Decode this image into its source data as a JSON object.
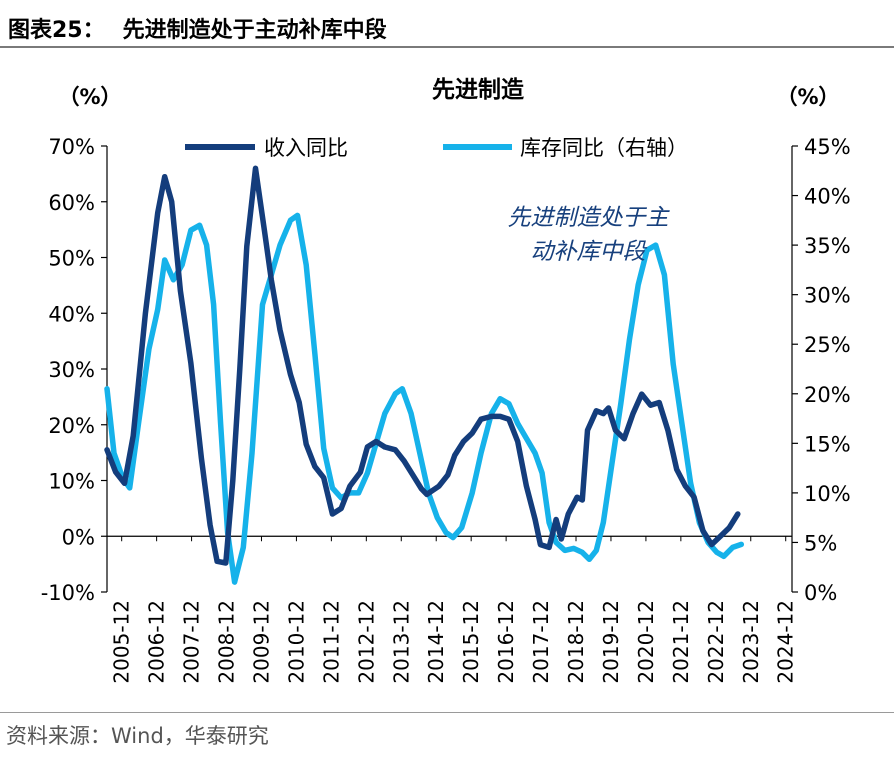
{
  "figure": {
    "label": "图表25：",
    "title": "先进制造处于主动补库中段",
    "source": "资料来源：Wind，华泰研究"
  },
  "colors": {
    "revenue": "#143D7C",
    "inventory": "#16B2EA",
    "annotation": "#17407D"
  },
  "chart_data": {
    "type": "line",
    "title": "先进制造",
    "ylabel_left": "（%）",
    "ylabel_right": "（%）",
    "left_axis": {
      "min": -10,
      "max": 70,
      "step": 10,
      "ticks": [
        "-10%",
        "0%",
        "10%",
        "20%",
        "30%",
        "40%",
        "50%",
        "60%",
        "70%"
      ]
    },
    "right_axis": {
      "min": 0,
      "max": 45,
      "step": 5,
      "ticks": [
        "0%",
        "5%",
        "10%",
        "15%",
        "20%",
        "25%",
        "30%",
        "35%",
        "40%",
        "45%"
      ]
    },
    "x_range": [
      2005.5,
      2025.1
    ],
    "categories": [
      "2005-12",
      "2006-12",
      "2007-12",
      "2008-12",
      "2009-12",
      "2010-12",
      "2011-12",
      "2012-12",
      "2013-12",
      "2014-12",
      "2015-12",
      "2016-12",
      "2017-12",
      "2018-12",
      "2019-12",
      "2020-12",
      "2021-12",
      "2022-12",
      "2023-12",
      "2024-12"
    ],
    "category_x": [
      2005.92,
      2006.92,
      2007.92,
      2008.92,
      2009.92,
      2010.92,
      2011.92,
      2012.92,
      2013.92,
      2014.92,
      2015.92,
      2016.92,
      2017.92,
      2018.92,
      2019.92,
      2020.92,
      2021.92,
      2022.92,
      2023.92,
      2024.92
    ],
    "annotation": [
      "先进制造处于主",
      "动补库中段"
    ],
    "series": [
      {
        "name": "收入同比",
        "axis": "left",
        "points": [
          [
            2005.5,
            15.5
          ],
          [
            2005.75,
            11.5
          ],
          [
            2006.0,
            9.5
          ],
          [
            2006.25,
            18
          ],
          [
            2006.6,
            40
          ],
          [
            2006.95,
            58
          ],
          [
            2007.15,
            64.5
          ],
          [
            2007.35,
            60
          ],
          [
            2007.6,
            44
          ],
          [
            2007.9,
            31
          ],
          [
            2008.2,
            14
          ],
          [
            2008.45,
            2
          ],
          [
            2008.65,
            -4.5
          ],
          [
            2008.9,
            -4.8
          ],
          [
            2009.1,
            10
          ],
          [
            2009.3,
            30
          ],
          [
            2009.5,
            52
          ],
          [
            2009.75,
            66
          ],
          [
            2010.0,
            55
          ],
          [
            2010.2,
            46
          ],
          [
            2010.45,
            37
          ],
          [
            2010.75,
            29
          ],
          [
            2011.0,
            24
          ],
          [
            2011.2,
            16.5
          ],
          [
            2011.45,
            12.5
          ],
          [
            2011.7,
            10.5
          ],
          [
            2011.95,
            4
          ],
          [
            2012.2,
            5
          ],
          [
            2012.45,
            9
          ],
          [
            2012.75,
            11.5
          ],
          [
            2012.95,
            16
          ],
          [
            2013.2,
            17
          ],
          [
            2013.45,
            16
          ],
          [
            2013.75,
            15.5
          ],
          [
            2014.0,
            13.5
          ],
          [
            2014.25,
            11
          ],
          [
            2014.5,
            8.5
          ],
          [
            2014.65,
            7.5
          ],
          [
            2015.0,
            9
          ],
          [
            2015.25,
            11
          ],
          [
            2015.45,
            14.5
          ],
          [
            2015.7,
            17
          ],
          [
            2015.95,
            18.5
          ],
          [
            2016.2,
            21
          ],
          [
            2016.5,
            21.5
          ],
          [
            2016.75,
            21.5
          ],
          [
            2017.0,
            21
          ],
          [
            2017.25,
            17
          ],
          [
            2017.5,
            9
          ],
          [
            2017.75,
            3
          ],
          [
            2017.9,
            -1.5
          ],
          [
            2018.15,
            -2
          ],
          [
            2018.35,
            3
          ],
          [
            2018.5,
            -0.5
          ],
          [
            2018.7,
            4
          ],
          [
            2018.95,
            7
          ],
          [
            2019.1,
            6.5
          ],
          [
            2019.25,
            19
          ],
          [
            2019.5,
            22.5
          ],
          [
            2019.7,
            22
          ],
          [
            2019.85,
            23
          ],
          [
            2020.05,
            19
          ],
          [
            2020.3,
            17.5
          ],
          [
            2020.55,
            22
          ],
          [
            2020.8,
            25.5
          ],
          [
            2021.05,
            23.5
          ],
          [
            2021.3,
            24
          ],
          [
            2021.55,
            19
          ],
          [
            2021.8,
            12
          ],
          [
            2022.05,
            9
          ],
          [
            2022.3,
            7
          ],
          [
            2022.55,
            1
          ],
          [
            2022.8,
            -1.5
          ],
          [
            2023.05,
            0
          ],
          [
            2023.3,
            1.5
          ],
          [
            2023.55,
            4
          ]
        ]
      },
      {
        "name": "库存同比（右轴）",
        "axis": "right",
        "points": [
          [
            2005.5,
            20.5
          ],
          [
            2005.7,
            14
          ],
          [
            2005.95,
            11.5
          ],
          [
            2006.15,
            10.5
          ],
          [
            2006.4,
            17
          ],
          [
            2006.7,
            24.5
          ],
          [
            2006.95,
            28.5
          ],
          [
            2007.15,
            33.5
          ],
          [
            2007.4,
            31.5
          ],
          [
            2007.65,
            33
          ],
          [
            2007.9,
            36.5
          ],
          [
            2008.15,
            37
          ],
          [
            2008.35,
            35
          ],
          [
            2008.55,
            29
          ],
          [
            2008.75,
            17
          ],
          [
            2008.95,
            6
          ],
          [
            2009.15,
            1
          ],
          [
            2009.4,
            4.5
          ],
          [
            2009.65,
            14
          ],
          [
            2009.95,
            29
          ],
          [
            2010.2,
            32
          ],
          [
            2010.45,
            35
          ],
          [
            2010.75,
            37.5
          ],
          [
            2010.95,
            38
          ],
          [
            2011.2,
            33
          ],
          [
            2011.45,
            24
          ],
          [
            2011.7,
            14.5
          ],
          [
            2011.95,
            10.5
          ],
          [
            2012.2,
            9.5
          ],
          [
            2012.45,
            10
          ],
          [
            2012.7,
            10
          ],
          [
            2012.95,
            12
          ],
          [
            2013.2,
            15
          ],
          [
            2013.45,
            18
          ],
          [
            2013.75,
            20
          ],
          [
            2013.95,
            20.5
          ],
          [
            2014.2,
            18
          ],
          [
            2014.45,
            14
          ],
          [
            2014.7,
            10
          ],
          [
            2014.95,
            7.5
          ],
          [
            2015.2,
            6
          ],
          [
            2015.4,
            5.5
          ],
          [
            2015.65,
            6.5
          ],
          [
            2015.95,
            10
          ],
          [
            2016.2,
            14
          ],
          [
            2016.5,
            18
          ],
          [
            2016.75,
            19.5
          ],
          [
            2017.0,
            19
          ],
          [
            2017.25,
            17
          ],
          [
            2017.5,
            15.5
          ],
          [
            2017.75,
            14
          ],
          [
            2017.95,
            12
          ],
          [
            2018.15,
            7
          ],
          [
            2018.35,
            5
          ],
          [
            2018.6,
            4.2
          ],
          [
            2018.85,
            4.4
          ],
          [
            2019.1,
            4
          ],
          [
            2019.3,
            3.3
          ],
          [
            2019.5,
            4.2
          ],
          [
            2019.7,
            7
          ],
          [
            2019.95,
            13
          ],
          [
            2020.2,
            19
          ],
          [
            2020.45,
            25.5
          ],
          [
            2020.7,
            31
          ],
          [
            2020.95,
            34.5
          ],
          [
            2021.2,
            35
          ],
          [
            2021.45,
            32
          ],
          [
            2021.7,
            23
          ],
          [
            2021.95,
            17
          ],
          [
            2022.2,
            11
          ],
          [
            2022.45,
            7
          ],
          [
            2022.7,
            5
          ],
          [
            2022.95,
            4
          ],
          [
            2023.15,
            3.6
          ],
          [
            2023.4,
            4.5
          ],
          [
            2023.65,
            4.8
          ]
        ]
      }
    ]
  }
}
